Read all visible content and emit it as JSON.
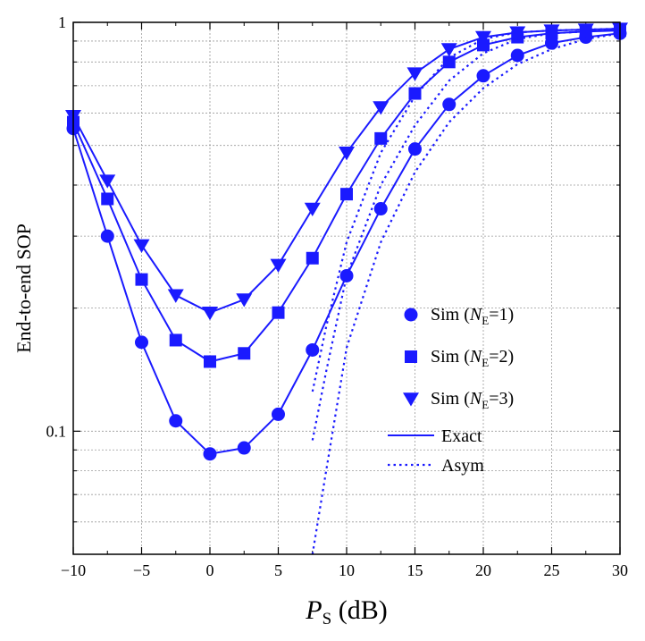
{
  "chart_data": {
    "type": "line",
    "title": "",
    "xlabel": {
      "main": "P",
      "sub": "S",
      "unit": " (dB)"
    },
    "ylabel": "End-to-end SOP",
    "yscale": "log",
    "xlim": [
      -10,
      30
    ],
    "ylim": [
      0.05,
      1
    ],
    "grid": true,
    "x_ticks": [
      -10,
      -5,
      0,
      5,
      10,
      15,
      20,
      25,
      30
    ],
    "x_tick_labels": [
      "−10",
      "−5",
      "0",
      "5",
      "10",
      "15",
      "20",
      "25",
      "30"
    ],
    "y_major_ticks": [
      0.1,
      1
    ],
    "y_tick_labels": [
      "0.1",
      "1"
    ],
    "y_minor_ticks": [
      0.06,
      0.07,
      0.08,
      0.09,
      0.2,
      0.3,
      0.4,
      0.5,
      0.6,
      0.7,
      0.8,
      0.9
    ],
    "x": [
      -10,
      -7.5,
      -5,
      -2.5,
      0,
      2.5,
      5,
      7.5,
      10,
      12.5,
      15,
      17.5,
      20,
      22.5,
      25,
      27.5,
      30
    ],
    "color": "#1a1aff",
    "series": [
      {
        "name": "N_E=1",
        "marker": "circle",
        "sim": [
          0.55,
          0.3,
          0.165,
          0.106,
          0.088,
          0.091,
          0.11,
          0.158,
          0.24,
          0.35,
          0.49,
          0.63,
          0.74,
          0.83,
          0.89,
          0.92,
          0.94
        ],
        "asym_x": [
          7.5,
          8.5,
          10,
          12.5,
          15,
          17.5,
          20,
          22.5,
          25,
          27.5,
          30
        ],
        "asym": [
          0.05,
          0.08,
          0.16,
          0.29,
          0.43,
          0.57,
          0.69,
          0.79,
          0.86,
          0.91,
          0.94
        ]
      },
      {
        "name": "N_E=2",
        "marker": "square",
        "sim": [
          0.57,
          0.37,
          0.235,
          0.167,
          0.148,
          0.155,
          0.195,
          0.265,
          0.38,
          0.52,
          0.67,
          0.8,
          0.88,
          0.92,
          0.94,
          0.95,
          0.955
        ],
        "asym_x": [
          7.5,
          8.5,
          10,
          12.5,
          15,
          17.5,
          20,
          22.5,
          25,
          27.5,
          30
        ],
        "asym": [
          0.095,
          0.14,
          0.24,
          0.4,
          0.56,
          0.72,
          0.84,
          0.91,
          0.94,
          0.95,
          0.96
        ]
      },
      {
        "name": "N_E=3",
        "marker": "triangle-down",
        "sim": [
          0.59,
          0.41,
          0.285,
          0.215,
          0.195,
          0.21,
          0.255,
          0.35,
          0.48,
          0.62,
          0.75,
          0.86,
          0.92,
          0.945,
          0.955,
          0.96,
          0.965
        ],
        "asym_x": [
          7.5,
          8.5,
          10,
          12.5,
          15,
          17.5,
          20,
          22.5,
          25,
          27.5,
          30
        ],
        "asym": [
          0.125,
          0.18,
          0.29,
          0.48,
          0.66,
          0.82,
          0.91,
          0.945,
          0.955,
          0.96,
          0.965
        ]
      }
    ],
    "legend": {
      "placement": "lower-right",
      "entries": [
        {
          "type": "marker",
          "marker": "circle",
          "prefix": "Sim (",
          "italic": "N",
          "sub": "E",
          "suffix": "=1)"
        },
        {
          "type": "marker",
          "marker": "square",
          "prefix": "Sim (",
          "italic": "N",
          "sub": "E",
          "suffix": "=2)"
        },
        {
          "type": "marker",
          "marker": "triangle-down",
          "prefix": "Sim (",
          "italic": "N",
          "sub": "E",
          "suffix": "=3)"
        },
        {
          "type": "solid",
          "label": "Exact"
        },
        {
          "type": "dotted",
          "label": "Asym"
        }
      ]
    }
  }
}
